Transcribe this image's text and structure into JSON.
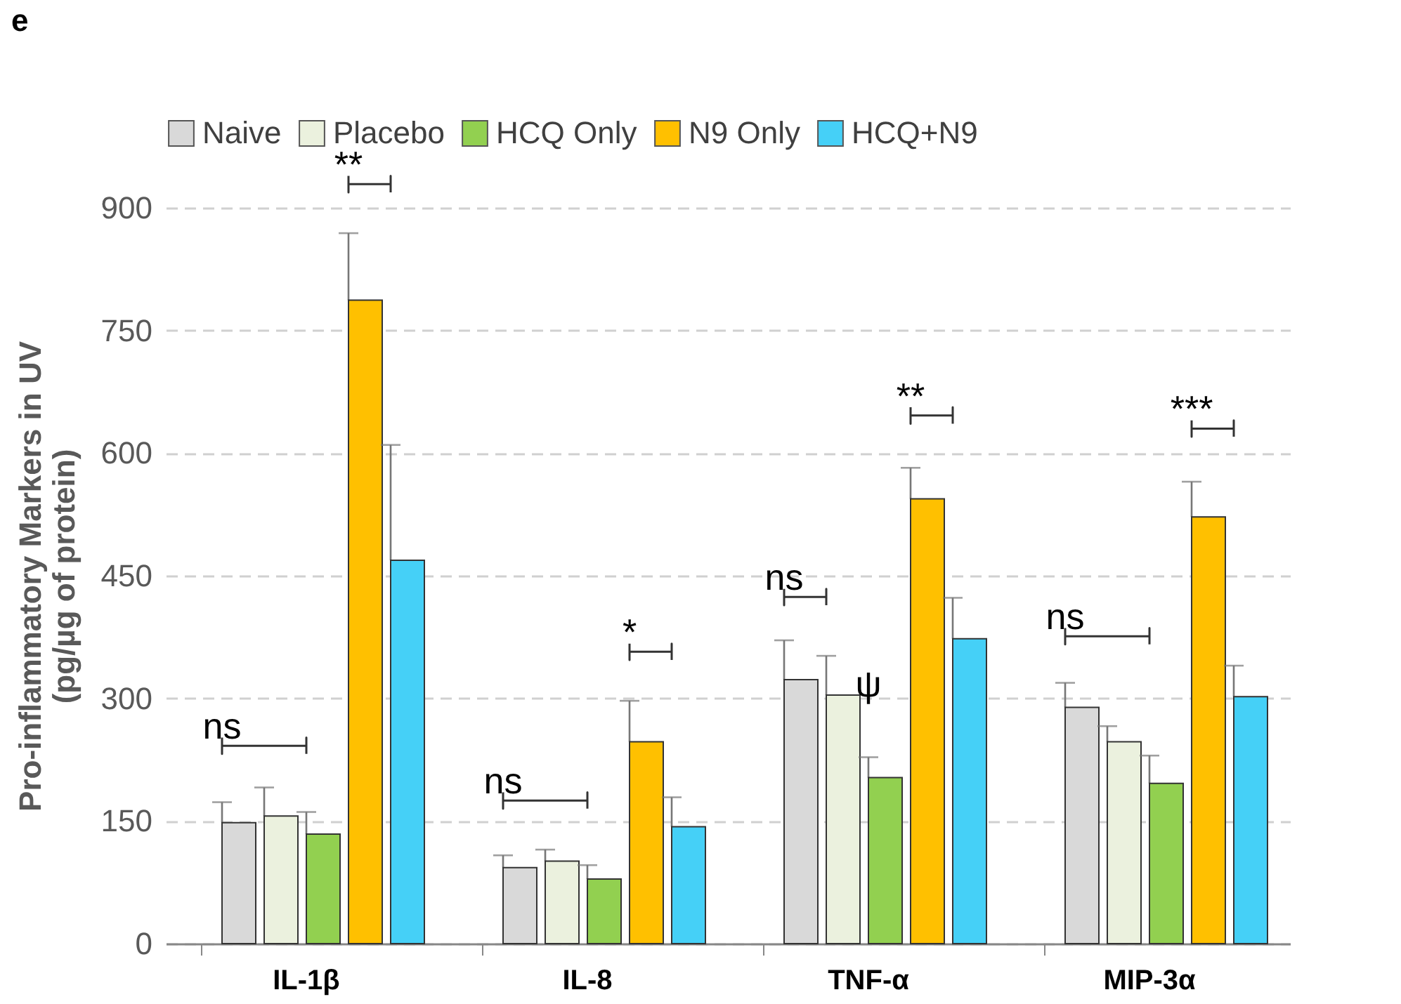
{
  "chart_data": {
    "type": "bar",
    "ylabel": "Pro-inflammatory Markers in UV\n(pg/µg of protein)",
    "categories": [
      "IL-1β",
      "IL-8",
      "TNF-α",
      "MIP-3α"
    ],
    "series": [
      {
        "name": "Naive",
        "color": "#d9d9d9",
        "values": [
          148,
          93,
          323,
          289
        ],
        "errors": [
          25,
          15,
          48,
          30
        ]
      },
      {
        "name": "Placebo",
        "color": "#ebf1de",
        "values": [
          156,
          101,
          304,
          247
        ],
        "errors": [
          35,
          14,
          48,
          19
        ]
      },
      {
        "name": "HCQ Only",
        "color": "#92d050",
        "values": [
          134,
          79,
          203,
          196
        ],
        "errors": [
          27,
          17,
          25,
          34
        ]
      },
      {
        "name": "N9 Only",
        "color": "#ffc000",
        "values": [
          787,
          247,
          544,
          522
        ],
        "errors": [
          82,
          50,
          38,
          43
        ]
      },
      {
        "name": "HCQ+N9",
        "color": "#45d0f7",
        "values": [
          469,
          143,
          373,
          302
        ],
        "errors": [
          141,
          36,
          50,
          38
        ]
      }
    ],
    "ylim": [
      0,
      900
    ],
    "yticks": [
      0,
      150,
      300,
      450,
      600,
      750,
      900
    ],
    "grid": "y",
    "legend": "top",
    "annotations": [
      "e",
      "ns",
      "**",
      "ns",
      "*",
      "ns",
      "**",
      "ψ",
      "ns",
      "***"
    ]
  }
}
